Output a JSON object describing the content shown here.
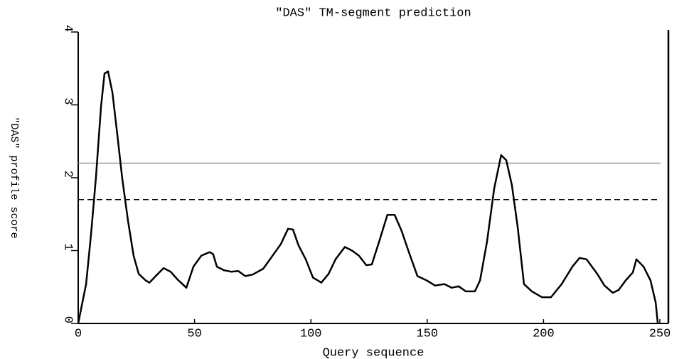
{
  "chart_data": {
    "type": "line",
    "title": "\"DAS\" TM-segment prediction",
    "x_label": "Query sequence",
    "y_label": "\"DAS\" profile score",
    "color": "#000000",
    "xlim": [
      0,
      254
    ],
    "ylim": [
      0,
      4
    ],
    "xticks": [
      0,
      50,
      100,
      150,
      200,
      250
    ],
    "yticks": [
      0,
      1,
      2,
      3,
      4
    ],
    "reference_lines": [
      {
        "value": 2.2,
        "style": "solid",
        "color": "#999999"
      },
      {
        "value": 1.7,
        "style": "dashed",
        "color": "#000000"
      }
    ],
    "x": [
      0,
      1.5,
      3.4,
      5.5,
      7.6,
      9.8,
      11.3,
      12.8,
      14.7,
      16.8,
      18.9,
      21.4,
      23.8,
      26,
      29,
      30.6,
      33.6,
      36.7,
      39.7,
      42.8,
      46.5,
      49.5,
      52.9,
      56.5,
      58,
      59.6,
      62.7,
      65.7,
      68.8,
      71.8,
      74.9,
      79.5,
      83.1,
      87.1,
      90.2,
      92.3,
      94.7,
      97.8,
      100.9,
      104.5,
      107.6,
      110.6,
      114.6,
      117.7,
      120.7,
      123.8,
      126.2,
      129.3,
      132.9,
      136,
      139,
      142.1,
      145.8,
      149.8,
      153.4,
      157.4,
      160.5,
      163.5,
      166.6,
      170.5,
      172.7,
      175.7,
      178.8,
      181.8,
      184,
      186.4,
      188.9,
      191.6,
      195,
      199.3,
      203.2,
      207.8,
      212.4,
      215.5,
      218.5,
      223.1,
      226.2,
      229.8,
      232.3,
      235.3,
      238.4,
      239.9,
      243,
      246,
      248.2,
      249.1
    ],
    "values": [
      0,
      0.24,
      0.54,
      1.22,
      2.0,
      2.98,
      3.43,
      3.46,
      3.17,
      2.59,
      2.0,
      1.41,
      0.93,
      0.68,
      0.59,
      0.56,
      0.66,
      0.76,
      0.71,
      0.6,
      0.49,
      0.78,
      0.93,
      0.98,
      0.95,
      0.78,
      0.73,
      0.71,
      0.72,
      0.65,
      0.67,
      0.75,
      0.91,
      1.09,
      1.3,
      1.29,
      1.07,
      0.88,
      0.63,
      0.56,
      0.68,
      0.88,
      1.05,
      1.0,
      0.93,
      0.8,
      0.81,
      1.12,
      1.49,
      1.49,
      1.27,
      0.98,
      0.65,
      0.59,
      0.52,
      0.54,
      0.49,
      0.51,
      0.44,
      0.44,
      0.59,
      1.12,
      1.85,
      2.31,
      2.24,
      1.9,
      1.32,
      0.54,
      0.44,
      0.36,
      0.36,
      0.54,
      0.78,
      0.9,
      0.88,
      0.68,
      0.52,
      0.42,
      0.46,
      0.59,
      0.7,
      0.88,
      0.78,
      0.59,
      0.29,
      0
    ]
  }
}
